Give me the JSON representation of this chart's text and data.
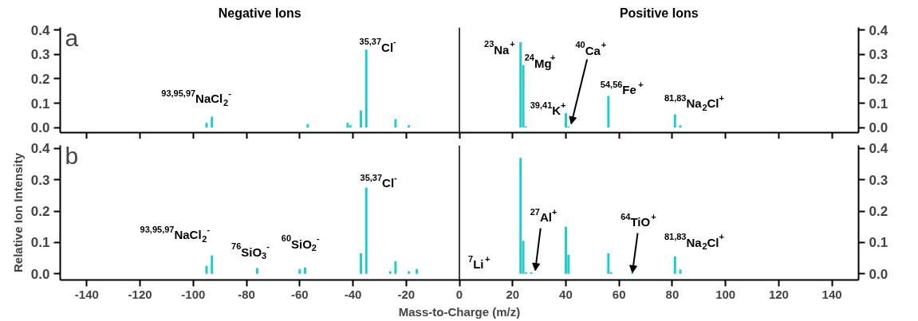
{
  "chart_data": [
    {
      "type": "bar",
      "title": "a",
      "x": [
        -95,
        -93,
        -57,
        -42,
        -41,
        -37,
        -35,
        -24,
        -19,
        23,
        24,
        25,
        40,
        41,
        56,
        81,
        83
      ],
      "series": [
        {
          "color": "#22cccc",
          "values": [
            0.02,
            0.045,
            0.015,
            0.02,
            0.01,
            0.07,
            0.32,
            0.035,
            0.01,
            0.35,
            0.255,
            0.005,
            0.06,
            0.005,
            0.13,
            0.055,
            0.01
          ]
        }
      ],
      "xlim": [
        -150,
        150
      ],
      "xticks": [
        -140,
        -120,
        -100,
        -80,
        -60,
        -40,
        -20,
        0,
        20,
        40,
        60,
        80,
        100,
        120,
        140
      ],
      "ylim": [
        -0.02,
        0.41
      ],
      "yticks": [
        {
          "value": 0,
          "label": "0.0"
        },
        {
          "value": 0.1,
          "label": "0.1"
        },
        {
          "value": 0.2,
          "label": "0.2"
        },
        {
          "value": 0.3,
          "label": "0.3"
        },
        {
          "value": 0.4,
          "label": "0.4"
        }
      ],
      "y2lim": [
        -0.02,
        0.41
      ],
      "y2ticks": [
        {
          "value": 0,
          "label": "0.0"
        },
        {
          "value": 0.1,
          "label": "0.1"
        },
        {
          "value": 0.2,
          "label": "0.2"
        },
        {
          "value": 0.3,
          "label": "0.3"
        },
        {
          "value": 0.4,
          "label": "0.4"
        }
      ],
      "tick_labels": "y",
      "ref_lines": [
        {
          "axis": "x",
          "value": 0,
          "color": "#000000"
        }
      ],
      "annotations": [
        "Negative Ions",
        "Positive Ions",
        "$^{93,95,97}$NaCl$_{2}$$^{-}$",
        "$^{35,37}$Cl$^{-}$",
        "$^{23}$Na$^{+}$",
        "$^{24}$Mg$^{+}$",
        {
          "text": "$^{40}$Ca$^{+}$",
          "x": 42,
          "y": 0.015
        },
        "$^{39,41}$K$^{+}$",
        "$^{54,56}$Fe$^{+}$",
        "$^{81,83}$Na$_{2}$Cl$^{+}$"
      ]
    },
    {
      "type": "bar",
      "title": "b",
      "x": [
        -95,
        -93,
        -76,
        -60,
        -58,
        -37,
        -35,
        -26,
        -24,
        -19,
        -16,
        23,
        24,
        25,
        27,
        40,
        41,
        56,
        57,
        65,
        81,
        83
      ],
      "series": [
        {
          "color": "#22cccc",
          "values": [
            0.025,
            0.058,
            0.018,
            0.015,
            0.02,
            0.065,
            0.275,
            0.008,
            0.04,
            0.008,
            0.015,
            0.37,
            0.105,
            0.005,
            0.005,
            0.15,
            0.06,
            0.065,
            0.005,
            0.003,
            0.055,
            0.013
          ]
        }
      ],
      "xlim": [
        -150,
        150
      ],
      "xticks": [
        -140,
        -120,
        -100,
        -80,
        -60,
        -40,
        -20,
        0,
        20,
        40,
        60,
        80,
        100,
        120,
        140
      ],
      "ylim": [
        -0.02,
        0.41
      ],
      "yticks": [
        {
          "value": 0,
          "label": "0.0"
        },
        {
          "value": 0.1,
          "label": "0.1"
        },
        {
          "value": 0.2,
          "label": "0.2"
        },
        {
          "value": 0.3,
          "label": "0.3"
        },
        {
          "value": 0.4,
          "label": "0.4"
        }
      ],
      "y2lim": [
        -0.02,
        0.41
      ],
      "y2ticks": [
        {
          "value": 0,
          "label": "0.0"
        },
        {
          "value": 0.1,
          "label": "0.1"
        },
        {
          "value": 0.2,
          "label": "0.2"
        },
        {
          "value": 0.3,
          "label": "0.3"
        },
        {
          "value": 0.4,
          "label": "0.4"
        }
      ],
      "xlabel": "Mass-to-Charge (m/z)",
      "ylabel": "Relative Ion Intensity",
      "ref_lines": [
        {
          "axis": "x",
          "value": 0,
          "color": "#000000"
        }
      ],
      "annotations": [
        "$^{93,95,97}$NaCl$_{2}$$^{-}$",
        "$^{76}$SiO$_{3}$$^{-}$",
        "$^{60}$SiO$_{2}$$^{-}$",
        "$^{35,37}$Cl$^{-}$",
        "$^{7}$Li$^{+}$",
        {
          "text": "$^{27}$Al$^{+}$",
          "x": 28.5,
          "y": 0.01
        },
        {
          "text": "$^{64}$TiO$^{+}$",
          "x": 65,
          "y": 0.003
        },
        "$^{81,83}$Na$_{2}$Cl$^{+}$"
      ]
    }
  ]
}
